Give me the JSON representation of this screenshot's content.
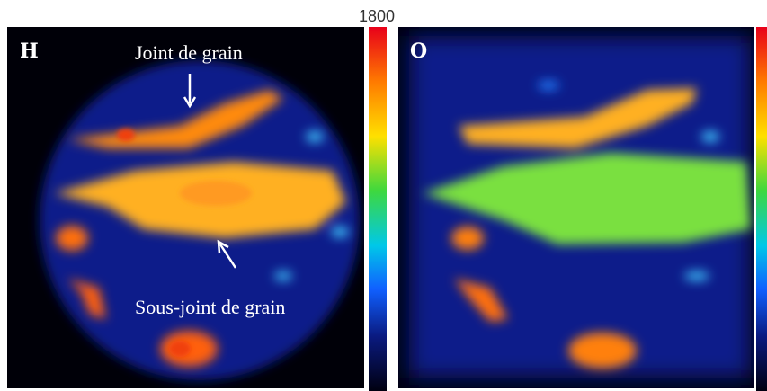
{
  "panels": [
    {
      "label": "H",
      "annotations": [
        "Joint de grain",
        "Sous-joint de grain"
      ]
    },
    {
      "label": "O"
    }
  ],
  "colorbar": {
    "max_label": "1800"
  }
}
